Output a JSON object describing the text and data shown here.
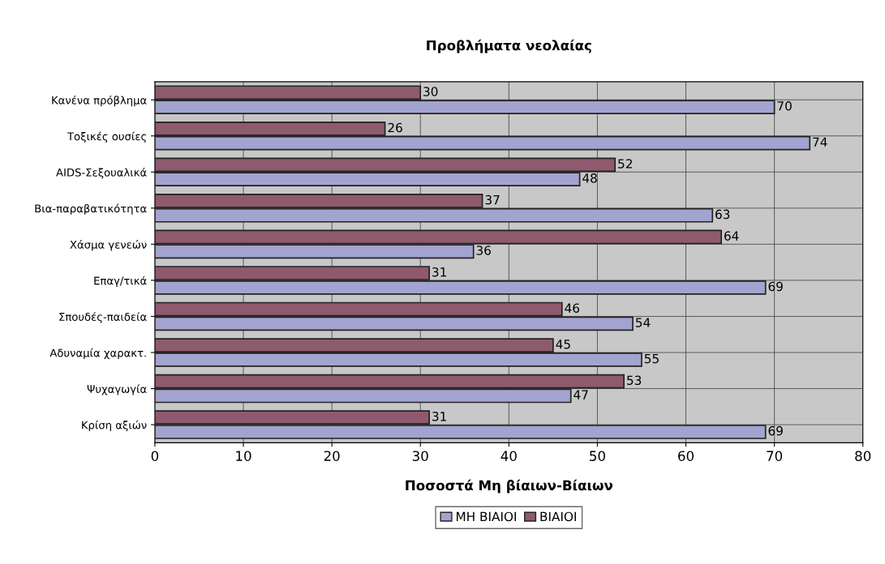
{
  "chart_data": {
    "type": "bar",
    "orientation": "horizontal",
    "title": "Προβλήματα νεολαίας",
    "xlabel": "Ποσοστά Μη βίαιων-Βίαιων",
    "categories": [
      "Κανένα πρόβλημα",
      "Τοξικές ουσίες",
      "AIDS-Σεξουαλικά",
      "Βια-παραβατικότητα",
      "Χάσμα γενεών",
      "Επαγ/τικά",
      "Σπουδές-παιδεία",
      "Αδυναμία χαρακτ.",
      "Ψυχαγωγία",
      "Κρίση αξιών"
    ],
    "series": [
      {
        "name": "ΜΗ ΒΙΑΙΟΙ",
        "color": "#a3a3cf",
        "values": [
          70,
          74,
          48,
          63,
          36,
          69,
          54,
          55,
          47,
          69
        ]
      },
      {
        "name": "ΒΙΑΙΟΙ",
        "color": "#8e5a6e",
        "values": [
          30,
          26,
          52,
          37,
          64,
          31,
          46,
          45,
          53,
          31
        ]
      }
    ],
    "xlim": [
      0,
      80
    ],
    "xticks": [
      0,
      10,
      20,
      30,
      40,
      50,
      60,
      70,
      80
    ],
    "grid": true,
    "legend": "bottom",
    "data_labels": true
  }
}
